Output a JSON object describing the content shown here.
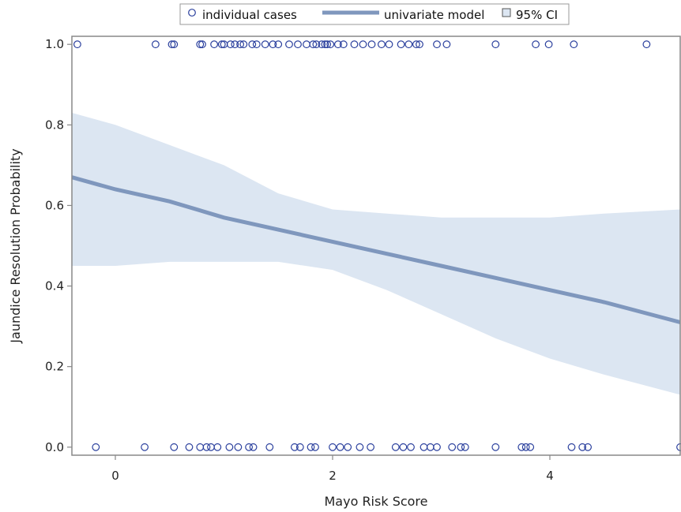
{
  "chart_data": {
    "type": "scatter",
    "xlabel": "Mayo Risk Score",
    "ylabel": "Jaundice Resolution Probability",
    "xlim": [
      -0.4,
      5.2
    ],
    "ylim": [
      -0.02,
      1.02
    ],
    "x_ticks": [
      0,
      2,
      4
    ],
    "y_ticks": [
      0.0,
      0.2,
      0.4,
      0.6,
      0.8,
      1.0
    ],
    "x_tick_labels": [
      "0",
      "2",
      "4"
    ],
    "y_tick_labels": [
      "0.0",
      "0.2",
      "0.4",
      "0.6",
      "0.8",
      "1.0"
    ],
    "grid": false,
    "legend_position": "top",
    "legend": [
      {
        "label": "individual cases",
        "kind": "marker"
      },
      {
        "label": "univariate model",
        "kind": "line"
      },
      {
        "label": "95% CI",
        "kind": "band"
      }
    ],
    "colors": {
      "points": "#2a3f9d",
      "line": "#7f97bd",
      "band": "#dce6f2",
      "frame": "#888888"
    },
    "series": [
      {
        "type": "scatter",
        "y": 1,
        "x": [
          -0.35,
          0.37,
          0.52,
          0.54,
          0.78,
          0.8,
          0.91,
          0.98,
          1.0,
          1.06,
          1.1,
          1.15,
          1.18,
          1.26,
          1.3,
          1.38,
          1.45,
          1.5,
          1.6,
          1.68,
          1.76,
          1.82,
          1.85,
          1.9,
          1.93,
          1.95,
          1.98,
          2.05,
          2.1,
          2.2,
          2.28,
          2.36,
          2.45,
          2.52,
          2.63,
          2.7,
          2.77,
          2.8,
          2.96,
          3.05,
          3.5,
          3.87,
          3.99,
          4.22,
          4.89
        ]
      },
      {
        "type": "scatter",
        "y": 0,
        "x": [
          -0.18,
          0.27,
          0.54,
          0.68,
          0.78,
          0.84,
          0.88,
          0.94,
          1.05,
          1.13,
          1.23,
          1.27,
          1.42,
          1.65,
          1.7,
          1.8,
          1.84,
          2.0,
          2.07,
          2.14,
          2.25,
          2.35,
          2.58,
          2.65,
          2.72,
          2.84,
          2.9,
          2.96,
          3.1,
          3.18,
          3.22,
          3.5,
          3.74,
          3.78,
          3.82,
          4.2,
          4.3,
          4.35,
          5.2
        ]
      },
      {
        "name": "univariate model",
        "type": "line",
        "x": [
          -0.4,
          0.0,
          0.5,
          1.0,
          1.5,
          2.0,
          2.5,
          3.0,
          3.5,
          4.0,
          4.5,
          5.2
        ],
        "y": [
          0.67,
          0.64,
          0.61,
          0.57,
          0.54,
          0.51,
          0.48,
          0.45,
          0.42,
          0.39,
          0.36,
          0.31
        ]
      },
      {
        "name": "95% CI",
        "type": "band",
        "x": [
          -0.4,
          0.0,
          0.5,
          1.0,
          1.5,
          2.0,
          2.5,
          3.0,
          3.5,
          4.0,
          4.5,
          5.2
        ],
        "lower": [
          0.45,
          0.45,
          0.46,
          0.46,
          0.46,
          0.44,
          0.39,
          0.33,
          0.27,
          0.22,
          0.18,
          0.13
        ],
        "upper": [
          0.83,
          0.8,
          0.75,
          0.7,
          0.63,
          0.59,
          0.58,
          0.57,
          0.57,
          0.57,
          0.58,
          0.59
        ]
      }
    ]
  }
}
